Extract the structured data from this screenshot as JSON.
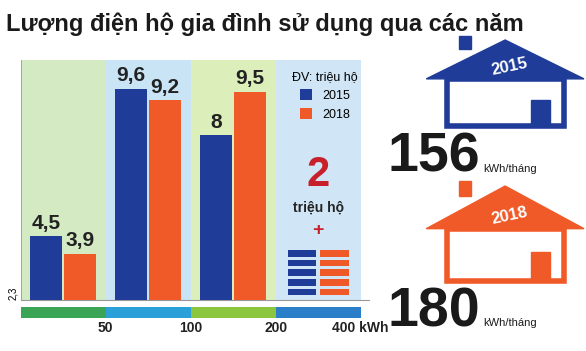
{
  "chart_data": {
    "type": "bar",
    "title": "Lượng điện hộ gia đình sử dụng qua các năm",
    "categories": [
      null,
      null,
      null,
      null
    ],
    "series": [
      {
        "name": "2015",
        "color": "#1f3c99",
        "values": [
          4.5,
          9.6,
          8,
          null
        ],
        "value_labels": [
          "4,5",
          "9,6",
          "8",
          null
        ]
      },
      {
        "name": "2018",
        "color": "#f05a28",
        "values": [
          3.9,
          9.2,
          9.5,
          null
        ],
        "value_labels": [
          "3,9",
          "9,2",
          "9,5",
          null
        ]
      }
    ],
    "xlim": [
      -0.5,
      3.6
    ],
    "xticks": [
      {
        "value": 0.5,
        "label": "50"
      },
      {
        "value": 1.5,
        "label": "100"
      },
      {
        "value": 2.5,
        "label": "200"
      },
      {
        "value": 3.5,
        "label": "400 kWh"
      }
    ],
    "ylim": [
      2.3,
      10.6
    ],
    "yticks": [
      {
        "value": 2.3,
        "label": "2,3"
      }
    ],
    "legend": "upper right",
    "legend_title": "ĐV: triệu hộ",
    "data_labels": true,
    "grid": false,
    "annotations": [
      {
        "value": 2,
        "text": "triệu hộ",
        "sign": "+"
      }
    ],
    "averages": [
      {
        "year": "2015",
        "value": 156,
        "unit": "kWh/tháng"
      },
      {
        "year": "2018",
        "value": 180,
        "unit": "kWh/tháng"
      }
    ]
  }
}
